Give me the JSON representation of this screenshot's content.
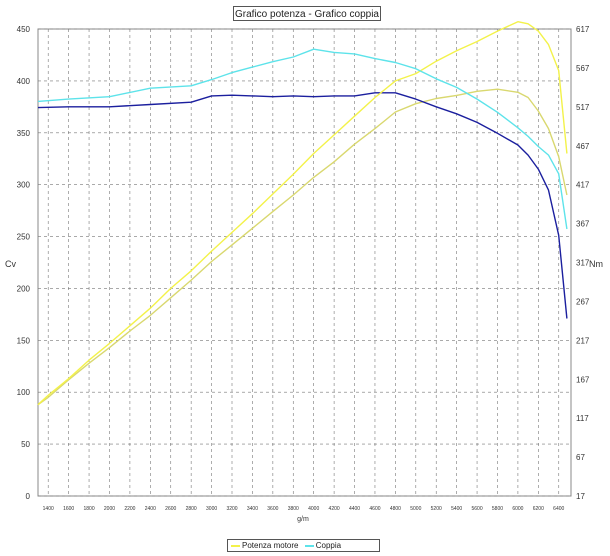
{
  "title": "Grafico potenza - Grafico coppia",
  "legend": {
    "items": [
      {
        "label": "Potenza motore",
        "color": "#f3f24a"
      },
      {
        "label": "Coppia",
        "color": "#5de3ea"
      }
    ]
  },
  "chart_data": {
    "type": "line",
    "xlabel": "g/m",
    "ylabel_left": "Cv",
    "ylabel_right": "Nm",
    "grid": true,
    "legend_position": "bottom",
    "x_ticks": [
      "1400",
      "1600",
      "1800",
      "2000",
      "2200",
      "2400",
      "2600",
      "2800",
      "3000",
      "3200",
      "3400",
      "3600",
      "3800",
      "4000",
      "4200",
      "4400",
      "4600",
      "4800",
      "5000",
      "5200",
      "5400",
      "5600",
      "5800",
      "6000",
      "6200",
      "6400"
    ],
    "xlim": [
      1300,
      6520
    ],
    "y_left_ticks": [
      "0",
      "50",
      "100",
      "150",
      "200",
      "250",
      "300",
      "350",
      "400",
      "450"
    ],
    "ylim_left": [
      0,
      450
    ],
    "y_right_ticks": [
      "17",
      "67",
      "117",
      "167",
      "217",
      "267",
      "317",
      "367",
      "417",
      "467",
      "517",
      "567",
      "617"
    ],
    "ylim_right": [
      17,
      617
    ],
    "series": [
      {
        "name": "Potenza motore",
        "axis": "left",
        "color": "#f3f24a",
        "x": [
          1300,
          1400,
          1600,
          1800,
          2000,
          2200,
          2400,
          2600,
          2800,
          3000,
          3200,
          3400,
          3600,
          3800,
          4000,
          4200,
          4400,
          4600,
          4800,
          5000,
          5200,
          5400,
          5600,
          5800,
          6000,
          6100,
          6200,
          6300,
          6400,
          6480
        ],
        "y": [
          88,
          97,
          113,
          131,
          147,
          164,
          181,
          200,
          217,
          236,
          254,
          272,
          291,
          310,
          330,
          348,
          366,
          384,
          400,
          407,
          419,
          429,
          438,
          448,
          457,
          455,
          448,
          435,
          410,
          330
        ]
      },
      {
        "name": "Coppia",
        "axis": "right",
        "color": "#5de3ea",
        "x": [
          1300,
          1600,
          2000,
          2400,
          2800,
          3000,
          3200,
          3400,
          3600,
          3800,
          4000,
          4200,
          4400,
          4600,
          4800,
          5000,
          5200,
          5400,
          5600,
          5800,
          6000,
          6100,
          6200,
          6300,
          6400,
          6480
        ],
        "y": [
          524,
          527,
          530,
          541,
          544,
          552,
          561,
          568,
          575,
          581,
          591,
          587,
          585,
          579,
          574,
          566,
          553,
          542,
          527,
          510,
          490,
          479,
          466,
          455,
          431,
          360
        ]
      },
      {
        "series_ref": "Potenza motore",
        "axis": "left",
        "color": "#d9d86f",
        "x": [
          1300,
          1400,
          1600,
          1800,
          2000,
          2200,
          2400,
          2600,
          2800,
          3000,
          3200,
          3400,
          3600,
          3800,
          4000,
          4200,
          4400,
          4600,
          4800,
          5000,
          5200,
          5400,
          5600,
          5800,
          6000,
          6100,
          6200,
          6300,
          6400,
          6480
        ],
        "y": [
          88,
          95,
          112,
          128,
          143,
          159,
          174,
          191,
          208,
          226,
          242,
          258,
          274,
          290,
          307,
          322,
          339,
          354,
          370,
          378,
          383,
          386,
          390,
          392,
          389,
          384,
          371,
          354,
          327,
          290
        ]
      },
      {
        "series_ref": "Coppia",
        "axis": "right",
        "color": "#1b1f9e",
        "x": [
          1300,
          1600,
          2000,
          2400,
          2800,
          3000,
          3200,
          3400,
          3600,
          3800,
          4000,
          4200,
          4400,
          4600,
          4800,
          5000,
          5200,
          5400,
          5600,
          5800,
          6000,
          6100,
          6200,
          6300,
          6400,
          6480
        ],
        "y": [
          516,
          517,
          517,
          520,
          523,
          531,
          532,
          531,
          530,
          531,
          530,
          531,
          531,
          535,
          535,
          527,
          517,
          508,
          497,
          483,
          468,
          455,
          437,
          410,
          352,
          245
        ]
      }
    ]
  }
}
